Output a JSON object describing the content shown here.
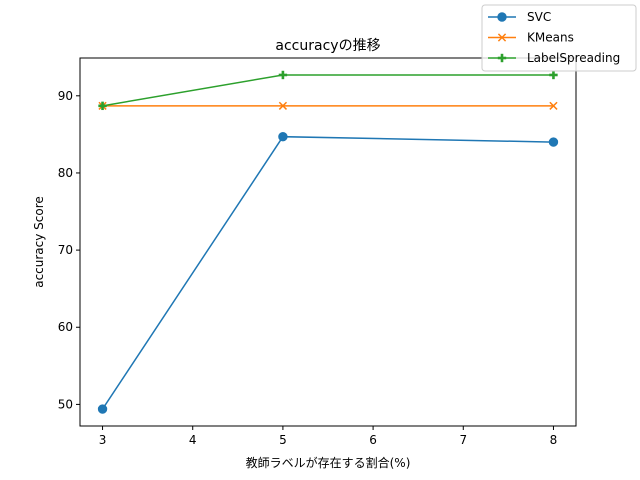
{
  "chart_data": {
    "type": "line",
    "title": "accuracyの推移",
    "xlabel": "教師ラベルが存在する割合(%)",
    "ylabel": "accuracy Score",
    "x": [
      3,
      5,
      8
    ],
    "xlim": [
      2.75,
      8.25
    ],
    "ylim": [
      47.2,
      94.9
    ],
    "xticks": [
      "3",
      "4",
      "5",
      "6",
      "7",
      "8"
    ],
    "yticks": [
      "50",
      "60",
      "70",
      "80",
      "90"
    ],
    "grid": false,
    "legend_position": "top-right",
    "series": [
      {
        "name": "SVC",
        "values": [
          49.4,
          84.7,
          84.0
        ],
        "color": "#1f77b4",
        "marker": "circle"
      },
      {
        "name": "KMeans",
        "values": [
          88.7,
          88.7,
          88.7
        ],
        "color": "#ff7f0e",
        "marker": "x"
      },
      {
        "name": "LabelSpreading",
        "values": [
          88.7,
          92.7,
          92.7
        ],
        "color": "#2ca02c",
        "marker": "plus"
      }
    ]
  }
}
